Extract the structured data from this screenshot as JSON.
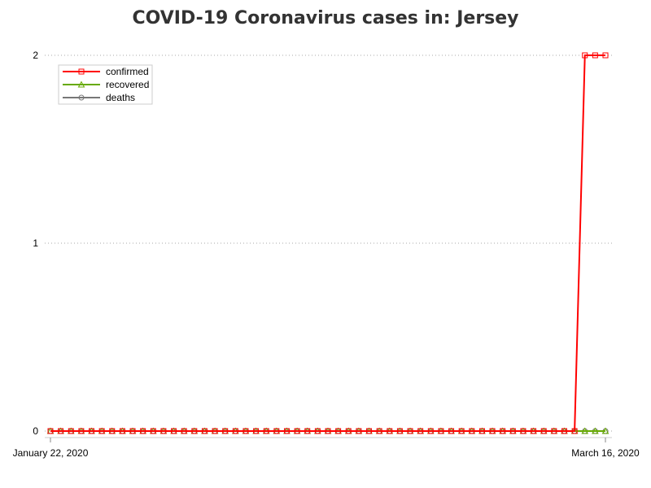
{
  "chart_data": {
    "type": "line",
    "title": "COVID-19 Coronavirus cases in: Jersey",
    "xlabel": "",
    "ylabel": "",
    "x": {
      "start": "January 22, 2020",
      "end": "March 16, 2020",
      "tick_labels": [
        "January 22, 2020",
        "March 16, 2020"
      ]
    },
    "ylim": [
      0,
      2
    ],
    "yticks": [
      0,
      1,
      2
    ],
    "grid": "horizontal dotted",
    "legend": "top-left",
    "series": [
      {
        "name": "confirmed",
        "color": "#ff0000",
        "marker": "square",
        "values": [
          0,
          0,
          0,
          0,
          0,
          0,
          0,
          0,
          0,
          0,
          0,
          0,
          0,
          0,
          0,
          0,
          0,
          0,
          0,
          0,
          0,
          0,
          0,
          0,
          0,
          0,
          0,
          0,
          0,
          0,
          0,
          0,
          0,
          0,
          0,
          0,
          0,
          0,
          0,
          0,
          0,
          0,
          0,
          0,
          0,
          0,
          0,
          0,
          0,
          0,
          0,
          0,
          2,
          2,
          2
        ]
      },
      {
        "name": "recovered",
        "color": "#66aa00",
        "marker": "triangle",
        "values": [
          0,
          0,
          0,
          0,
          0,
          0,
          0,
          0,
          0,
          0,
          0,
          0,
          0,
          0,
          0,
          0,
          0,
          0,
          0,
          0,
          0,
          0,
          0,
          0,
          0,
          0,
          0,
          0,
          0,
          0,
          0,
          0,
          0,
          0,
          0,
          0,
          0,
          0,
          0,
          0,
          0,
          0,
          0,
          0,
          0,
          0,
          0,
          0,
          0,
          0,
          0,
          0,
          0,
          0,
          0
        ]
      },
      {
        "name": "deaths",
        "color": "#777777",
        "marker": "circle",
        "values": [
          0,
          0,
          0,
          0,
          0,
          0,
          0,
          0,
          0,
          0,
          0,
          0,
          0,
          0,
          0,
          0,
          0,
          0,
          0,
          0,
          0,
          0,
          0,
          0,
          0,
          0,
          0,
          0,
          0,
          0,
          0,
          0,
          0,
          0,
          0,
          0,
          0,
          0,
          0,
          0,
          0,
          0,
          0,
          0,
          0,
          0,
          0,
          0,
          0,
          0,
          0,
          0,
          0,
          0,
          0
        ]
      }
    ]
  }
}
